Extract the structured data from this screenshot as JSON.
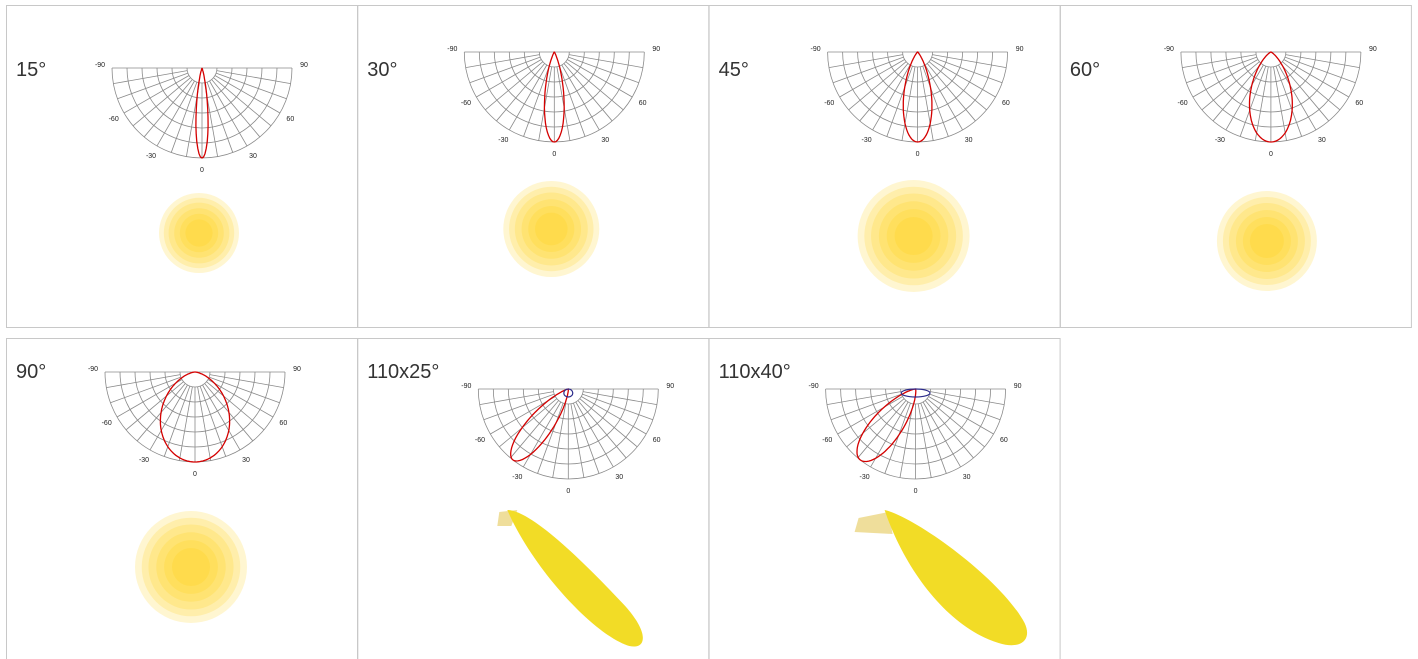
{
  "cards": [
    {
      "label": "15°"
    },
    {
      "label": "30°"
    },
    {
      "label": "45°"
    },
    {
      "label": "60°"
    },
    {
      "label": "90°"
    },
    {
      "label": "110x25°"
    },
    {
      "label": "110x40°"
    }
  ],
  "polar_ticks": [
    -90,
    -60,
    -30,
    0,
    30,
    60,
    90
  ]
}
